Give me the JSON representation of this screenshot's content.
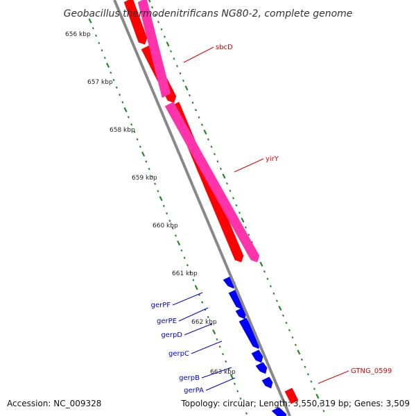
{
  "title": "Geobacillus thermodenitrificans NG80-2, complete genome",
  "ticks": [
    {
      "label": "656 kbp"
    },
    {
      "label": "657 kbp"
    },
    {
      "label": "658 kbp"
    },
    {
      "label": "659 kbp"
    },
    {
      "label": "660 kbp"
    },
    {
      "label": "661 kbp"
    },
    {
      "label": "662 kbp"
    },
    {
      "label": "663 kbp"
    }
  ],
  "gene_labels": [
    {
      "name": "sbcD",
      "strand": "forward"
    },
    {
      "name": "yirY",
      "strand": "forward"
    },
    {
      "name": "gerPF",
      "strand": "reverse"
    },
    {
      "name": "gerPE",
      "strand": "reverse"
    },
    {
      "name": "gerpD",
      "strand": "reverse"
    },
    {
      "name": "gerpC",
      "strand": "reverse"
    },
    {
      "name": "gerpB",
      "strand": "reverse"
    },
    {
      "name": "gerPA",
      "strand": "reverse"
    },
    {
      "name": "GTNG_0599",
      "strand": "forward"
    }
  ],
  "colors": {
    "forward_cds": "#ff0000",
    "forward_feature": "#ff33aa",
    "reverse_cds": "#0000ff",
    "backbone": "#888888",
    "tick_marks": "#228822",
    "label_forward": "#dd0000",
    "label_reverse": "#0000cc"
  },
  "footer": {
    "accession": "Accession: NC_009328",
    "topology": "Topology: circular; Length: 3,550,319 bp; Genes: 3,509"
  }
}
